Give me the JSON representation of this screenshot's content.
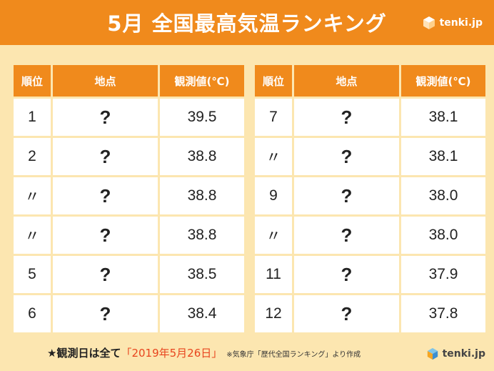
{
  "title": "5月 全国最高気温ランキング",
  "brand": "tenki.jp",
  "headers": {
    "rank": "順位",
    "place": "地点",
    "value": "観測値(℃)"
  },
  "left_rows": [
    {
      "rank": "1",
      "place": "?",
      "value": "39.5"
    },
    {
      "rank": "2",
      "place": "?",
      "value": "38.8"
    },
    {
      "rank": "〃",
      "place": "?",
      "value": "38.8"
    },
    {
      "rank": "〃",
      "place": "?",
      "value": "38.8"
    },
    {
      "rank": "5",
      "place": "?",
      "value": "38.5"
    },
    {
      "rank": "6",
      "place": "?",
      "value": "38.4"
    }
  ],
  "right_rows": [
    {
      "rank": "7",
      "place": "?",
      "value": "38.1"
    },
    {
      "rank": "〃",
      "place": "?",
      "value": "38.1"
    },
    {
      "rank": "9",
      "place": "?",
      "value": "38.0"
    },
    {
      "rank": "〃",
      "place": "?",
      "value": "38.0"
    },
    {
      "rank": "11",
      "place": "?",
      "value": "37.9"
    },
    {
      "rank": "12",
      "place": "?",
      "value": "37.8"
    }
  ],
  "footer": {
    "lead": "★観測日は全て",
    "date": "「2019年5月26日」",
    "source": "※気象庁「歴代全国ランキング」より作成"
  },
  "colors": {
    "accent": "#f08a1c",
    "background": "#fce6b0",
    "date_text": "#e8451e"
  },
  "icons": {
    "brand_logo": "tenki-cube-logo-icon"
  }
}
